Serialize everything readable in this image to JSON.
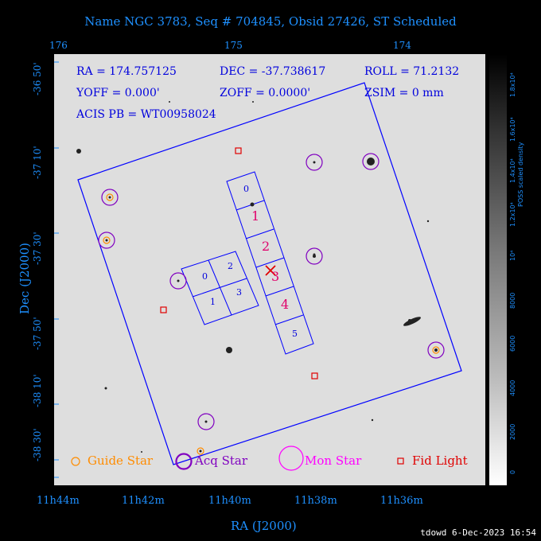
{
  "title": "Name NGC 3783, Seq # 704845, Obsid 27426, ST Scheduled",
  "top_axis_ticks": [
    "176",
    "175",
    "174"
  ],
  "bottom_axis_ticks": [
    "11h44m",
    "11h42m",
    "11h40m",
    "11h38m",
    "11h36m"
  ],
  "left_axis_ticks": [
    "-36 50'",
    "-37 10'",
    "-37 30'",
    "-37 50'",
    "-38 10'",
    "-38 30'"
  ],
  "xlabel": "RA (J2000)",
  "ylabel": "Dec (J2000)",
  "info": {
    "ra": "RA = 174.757125",
    "dec": "DEC = -37.738617",
    "roll": "ROLL = 71.2132",
    "yoff": "YOFF =    0.000'",
    "zoff": "ZOFF =  0.0000'",
    "zsim": "ZSIM = 0 mm",
    "acis_pb": "ACIS PB = WT00958024"
  },
  "chips": {
    "i0": "0",
    "i1": "1",
    "i2": "2",
    "i3": "3",
    "s0": "0",
    "s1": "1",
    "s2": "2",
    "s3": "3",
    "s4": "4",
    "s5": "5"
  },
  "colorbar": {
    "ticks": [
      "0",
      "2000",
      "4000",
      "6000",
      "8000",
      "10⁴",
      "1.2x10⁴",
      "1.4x10⁴",
      "1.6x10⁴",
      "1.8x10⁴"
    ],
    "label": "POSS scaled density"
  },
  "legend": {
    "guide": "Guide Star",
    "acq": "Acq Star",
    "mon": "Mon Star",
    "fid": "Fid Light"
  },
  "colors": {
    "axis": "#1e90ff",
    "field": "#0000ff",
    "guide": "#ff8c00",
    "acq": "#8000c0",
    "mon": "#ff00ff",
    "fid": "#e00000",
    "s3_label": "#e0006a"
  },
  "footer": "tdowd  6-Dec-2023 16:54"
}
